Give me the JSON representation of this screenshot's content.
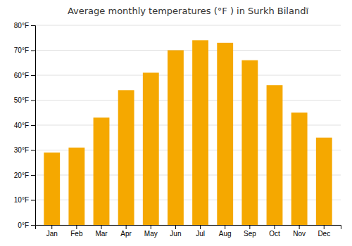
{
  "chart_data": {
    "type": "bar",
    "title": "Average monthly temperatures (°F ) in Surkh Bilandī",
    "categories": [
      "Jan",
      "Feb",
      "Mar",
      "Apr",
      "May",
      "Jun",
      "Jul",
      "Aug",
      "Sep",
      "Oct",
      "Nov",
      "Dec"
    ],
    "values": [
      29,
      31,
      43,
      54,
      61,
      70,
      74,
      73,
      66,
      56,
      45,
      35
    ],
    "color": "#F5A800",
    "ylim": [
      0,
      80
    ],
    "yticks": [
      {
        "value": 0,
        "label": "0°F"
      },
      {
        "value": 10,
        "label": "10°F"
      },
      {
        "value": 20,
        "label": "20°F"
      },
      {
        "value": 30,
        "label": "30°F"
      },
      {
        "value": 40,
        "label": "40°F"
      },
      {
        "value": 50,
        "label": "50°F"
      },
      {
        "value": 60,
        "label": "60°F"
      },
      {
        "value": 70,
        "label": "70°F"
      },
      {
        "value": 80,
        "label": "80°F"
      }
    ],
    "grid": true
  }
}
